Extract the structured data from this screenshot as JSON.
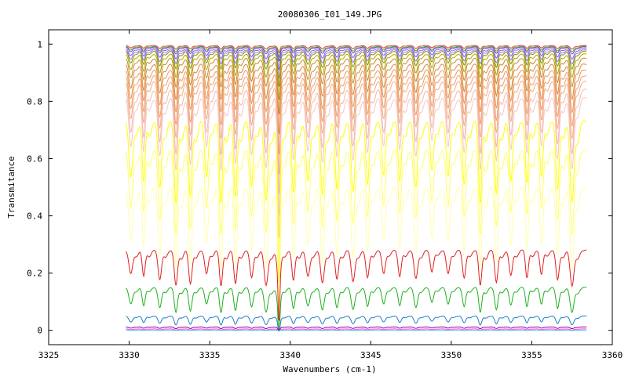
{
  "chart_data": {
    "type": "line",
    "title": "20080306_I01_149.JPG",
    "xlabel": "Wavenumbers (cm-1)",
    "ylabel": "Transmitance",
    "xlim": [
      3325,
      3360
    ],
    "ylim": [
      -0.05,
      1.05
    ],
    "x_ticks": [
      "3325",
      "3330",
      "3335",
      "3340",
      "3345",
      "3350",
      "3355",
      "3360"
    ],
    "y_ticks": [
      "0",
      "0.2",
      "0.4",
      "0.6",
      "0.8",
      "1"
    ],
    "grid": false,
    "legend": "none",
    "x_range_data": [
      3329.8,
      3358.4
    ],
    "series": [
      {
        "baseline": 0.995,
        "dip": 0.01,
        "color": "#ff2a2a"
      },
      {
        "baseline": 0.992,
        "dip": 0.015,
        "color": "#2ecc40"
      },
      {
        "baseline": 0.99,
        "dip": 0.02,
        "color": "#7b3fbf"
      },
      {
        "baseline": 0.985,
        "dip": 0.03,
        "color": "#8a5adf"
      },
      {
        "baseline": 0.98,
        "dip": 0.04,
        "color": "#9f7ae8"
      },
      {
        "baseline": 0.975,
        "dip": 0.05,
        "color": "#7a9a00"
      },
      {
        "baseline": 0.965,
        "dip": 0.065,
        "color": "#b5a500"
      },
      {
        "baseline": 0.95,
        "dip": 0.08,
        "color": "#c88a2a"
      },
      {
        "baseline": 0.93,
        "dip": 0.1,
        "color": "#d98a3c"
      },
      {
        "baseline": 0.91,
        "dip": 0.12,
        "color": "#e89a60"
      },
      {
        "baseline": 0.89,
        "dip": 0.14,
        "color": "#f0a070"
      },
      {
        "baseline": 0.87,
        "dip": 0.16,
        "color": "#f0b080"
      },
      {
        "baseline": 0.84,
        "dip": 0.18,
        "color": "#f4b8b0"
      },
      {
        "baseline": 0.81,
        "dip": 0.2,
        "color": "#f8c8c0"
      },
      {
        "baseline": 0.73,
        "dip": 0.23,
        "color": "#ffff00"
      },
      {
        "baseline": 0.63,
        "dip": 0.24,
        "color": "#ffff66"
      },
      {
        "baseline": 0.5,
        "dip": 0.23,
        "color": "#ffffaa"
      },
      {
        "baseline": 0.28,
        "dip": 0.1,
        "color": "#e02020"
      },
      {
        "baseline": 0.15,
        "dip": 0.07,
        "color": "#20b020"
      },
      {
        "baseline": 0.05,
        "dip": 0.025,
        "color": "#1e7ec8"
      },
      {
        "baseline": 0.012,
        "dip": 0.005,
        "color": "#8b008b"
      },
      {
        "baseline": 0.005,
        "dip": 0.003,
        "color": "#ff40ff"
      },
      {
        "baseline": 0.001,
        "dip": 0.001,
        "color": "#40c0e0"
      }
    ],
    "absorption_lines": [
      3330.1,
      3330.9,
      3331.9,
      3332.9,
      3333.8,
      3334.8,
      3335.7,
      3336.6,
      3337.6,
      3338.5,
      3339.3,
      3340.2,
      3341.1,
      3342.0,
      3342.9,
      3343.9,
      3344.8,
      3345.8,
      3346.8,
      3347.8,
      3348.8,
      3349.8,
      3350.8,
      3351.8,
      3352.8,
      3353.7,
      3354.7,
      3355.6,
      3356.6,
      3357.5
    ],
    "strong_line": 3339.3
  }
}
